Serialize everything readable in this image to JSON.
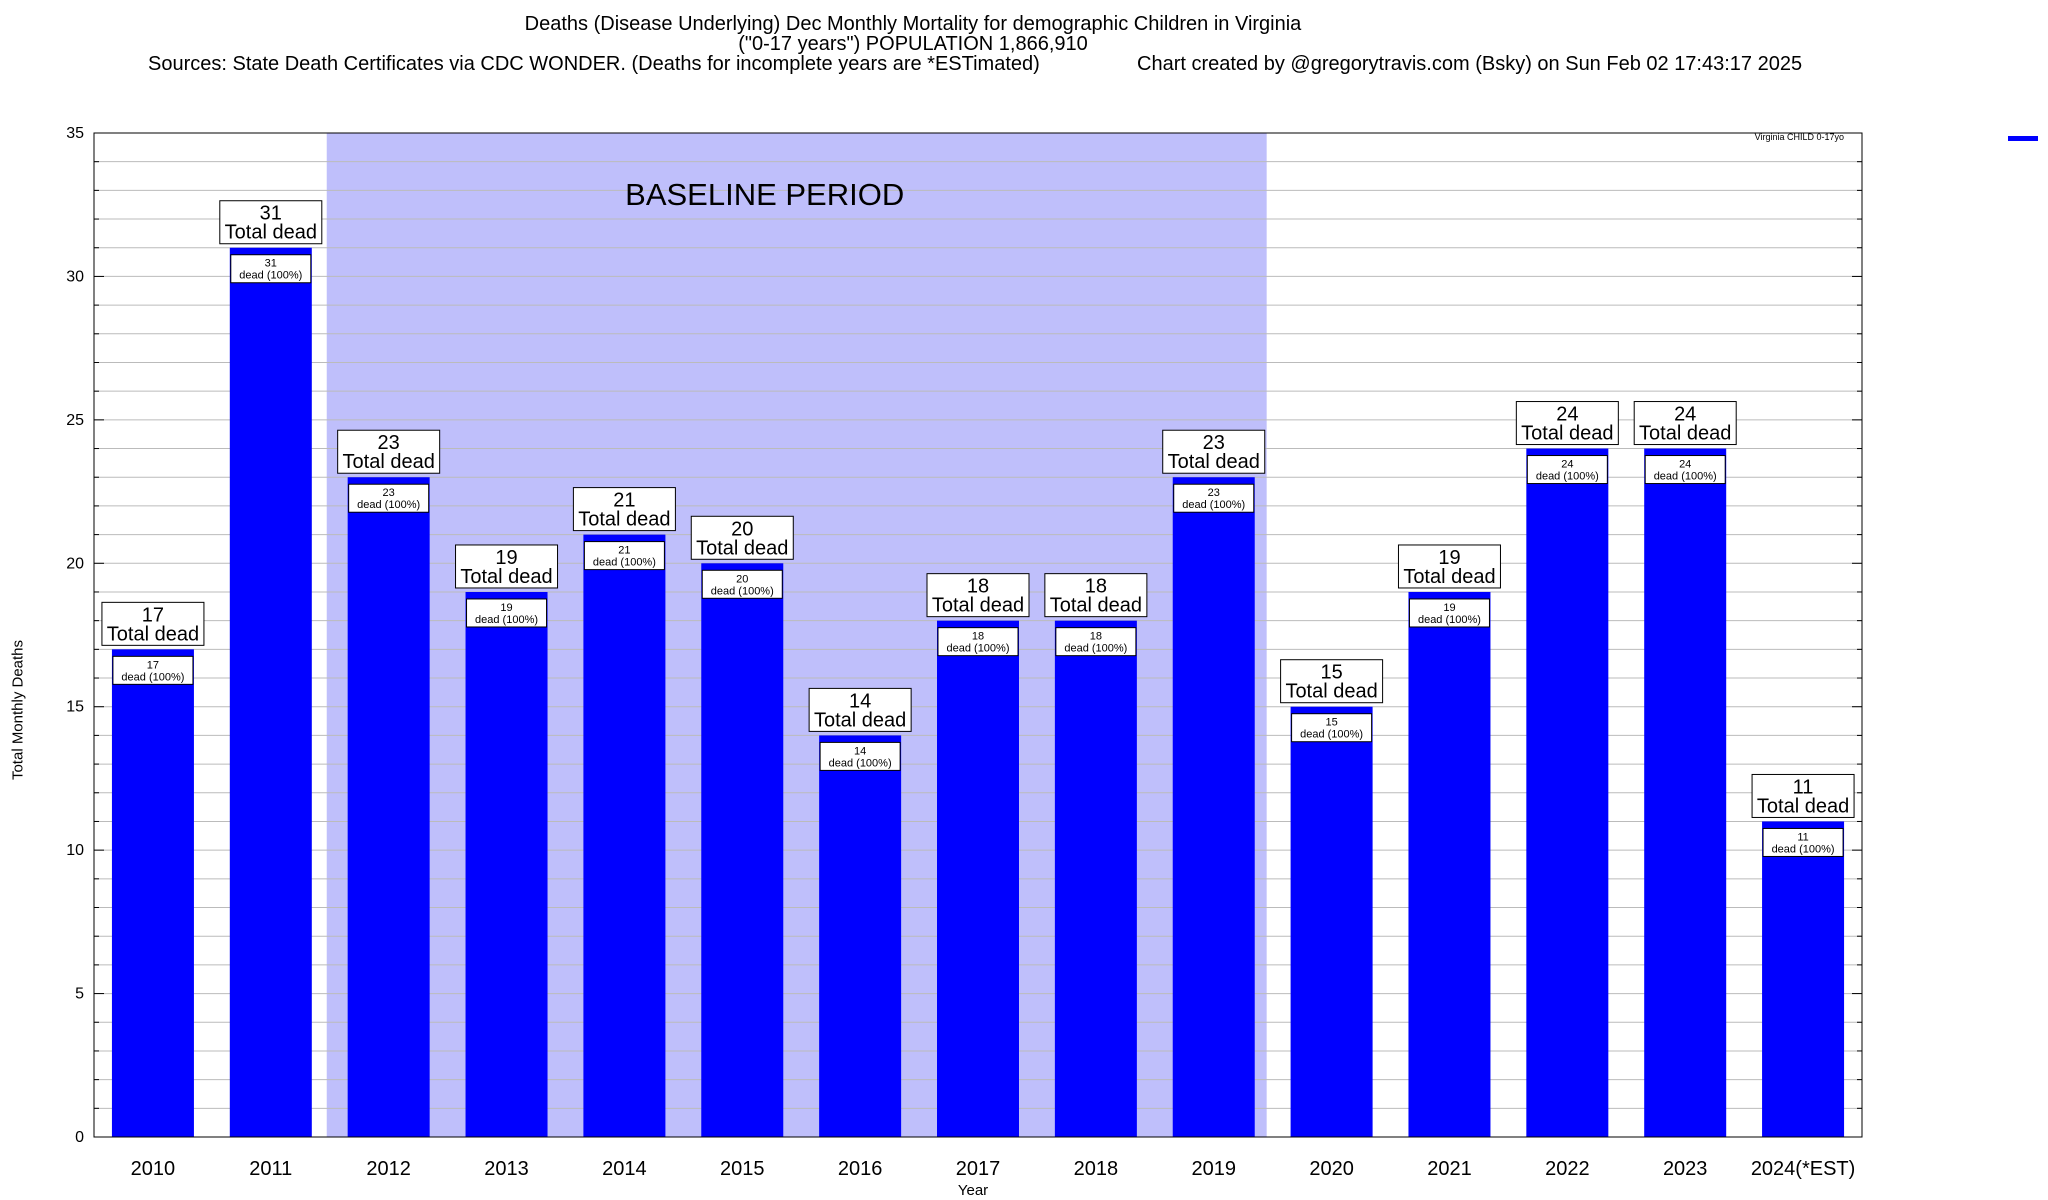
{
  "title": "Deaths (Disease Underlying) Dec Monthly Mortality for demographic Children in Virginia",
  "subtitle": "(\"0-17 years\") POPULATION 1,866,910",
  "sources": "Sources: State Death Certificates via CDC WONDER. (Deaths for incomplete years are *ESTimated)",
  "credit": "Chart created by @gregorytravis.com (Bsky) on Sun Feb 02 17:43:17 2025",
  "colors": {
    "bar": "#0000ff",
    "baseline": "#bfbffb",
    "grid": "#bbbbbb"
  },
  "chart_data": {
    "type": "bar",
    "categories": [
      "2010",
      "2011",
      "2012",
      "2013",
      "2014",
      "2015",
      "2016",
      "2017",
      "2018",
      "2019",
      "2020",
      "2021",
      "2022",
      "2023",
      "2024(*EST)"
    ],
    "series": [
      {
        "name": "Virginia CHILD 0-17yo",
        "values": [
          17,
          31,
          23,
          19,
          21,
          20,
          14,
          18,
          18,
          23,
          15,
          19,
          24,
          24,
          11
        ]
      }
    ],
    "xlabel": "Year",
    "ylabel": "Total Monthly Deaths",
    "ylim": [
      0,
      35
    ],
    "yticks": [
      0,
      5,
      10,
      15,
      20,
      25,
      30,
      35
    ],
    "grid": true,
    "legend_position": "top-right",
    "baseline_period": {
      "label": "BASELINE PERIOD",
      "start": "2012",
      "end": "2019"
    },
    "top_label_suffix": "Total dead",
    "inner_label_suffix": "dead (100%)"
  }
}
